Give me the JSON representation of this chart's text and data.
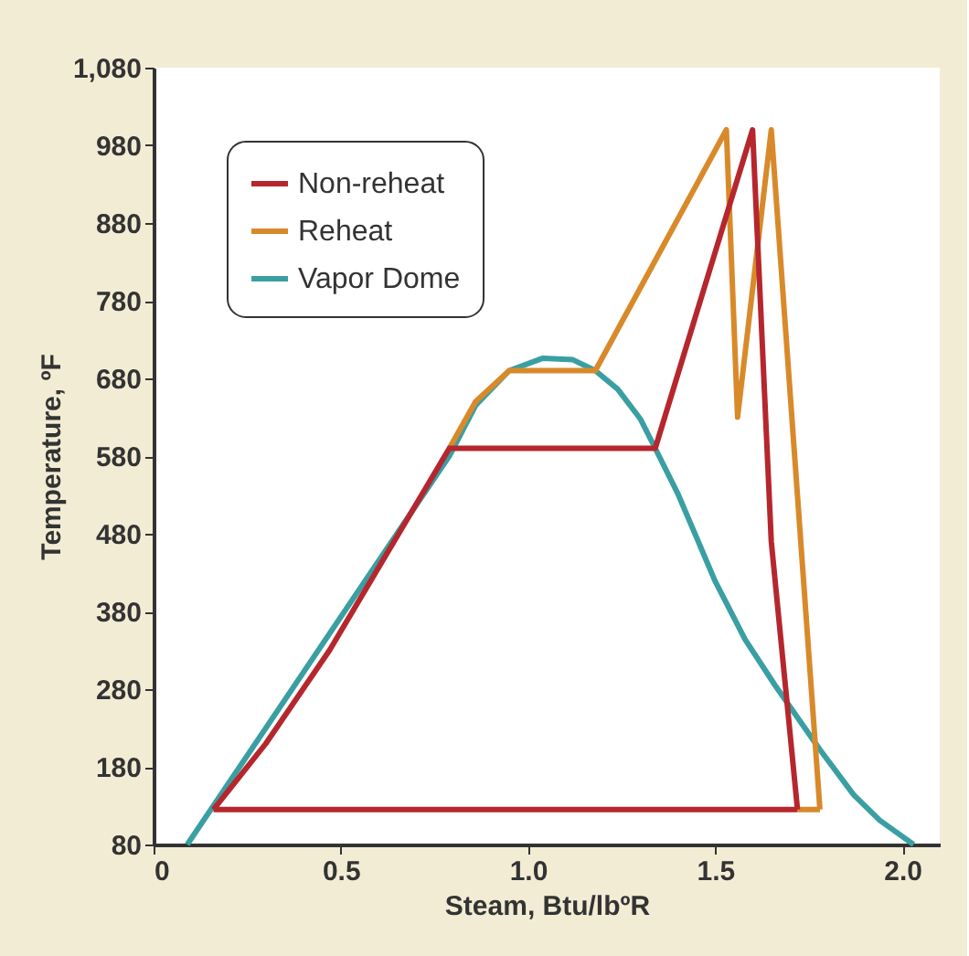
{
  "chart_data": {
    "type": "line",
    "xlabel": "Steam, Btu/lbºR",
    "ylabel": "Temperature, ºF",
    "xlim": [
      0,
      2.1
    ],
    "ylim": [
      80,
      1080
    ],
    "xticks": [
      {
        "value": 0,
        "label": "0"
      },
      0.5,
      {
        "value": 1,
        "label": "1.0"
      },
      1.5,
      {
        "value": 2,
        "label": "2.0"
      }
    ],
    "yticks": [
      80,
      180,
      280,
      380,
      480,
      580,
      680,
      780,
      880,
      980,
      {
        "value": 1080,
        "label": "1,080"
      }
    ],
    "grid": false,
    "legend": "top left",
    "marker": "none",
    "line_style": "solid",
    "series": [
      {
        "name": "Vapor Dome",
        "color": "#3a9fa3",
        "x": [
          0.09,
          0.79,
          0.86,
          0.95,
          1.04,
          1.12,
          1.18,
          1.24,
          1.3,
          1.34,
          1.4,
          1.5,
          1.58,
          1.66,
          1.78,
          1.87,
          1.94,
          2.03
        ],
        "values": [
          80,
          580,
          645,
          690,
          706,
          704,
          690,
          666,
          628,
          590,
          532,
          419,
          344,
          285,
          202,
          144,
          111,
          80
        ]
      },
      {
        "name": "Reheat",
        "color": "#d88a2a",
        "x": [
          0.79,
          0.86,
          0.95,
          1.18,
          1.53,
          1.56,
          1.65,
          1.78
        ],
        "values": [
          590,
          650,
          690,
          690,
          1000,
          630,
          1000,
          125
        ]
      },
      {
        "color": "#d88a2a",
        "x": [
          1.72,
          1.78
        ],
        "values": [
          125,
          125
        ]
      },
      {
        "name": "Non-reheat",
        "color": "#b5272d",
        "x": [
          0.16,
          0.3,
          0.47,
          0.79,
          1.34,
          1.6,
          1.65,
          1.72
        ],
        "values": [
          125,
          210,
          330,
          590,
          590,
          1000,
          470,
          125
        ]
      },
      {
        "color": "#b5272d",
        "x": [
          0.16,
          1.72
        ],
        "values": [
          125,
          125
        ]
      }
    ]
  }
}
